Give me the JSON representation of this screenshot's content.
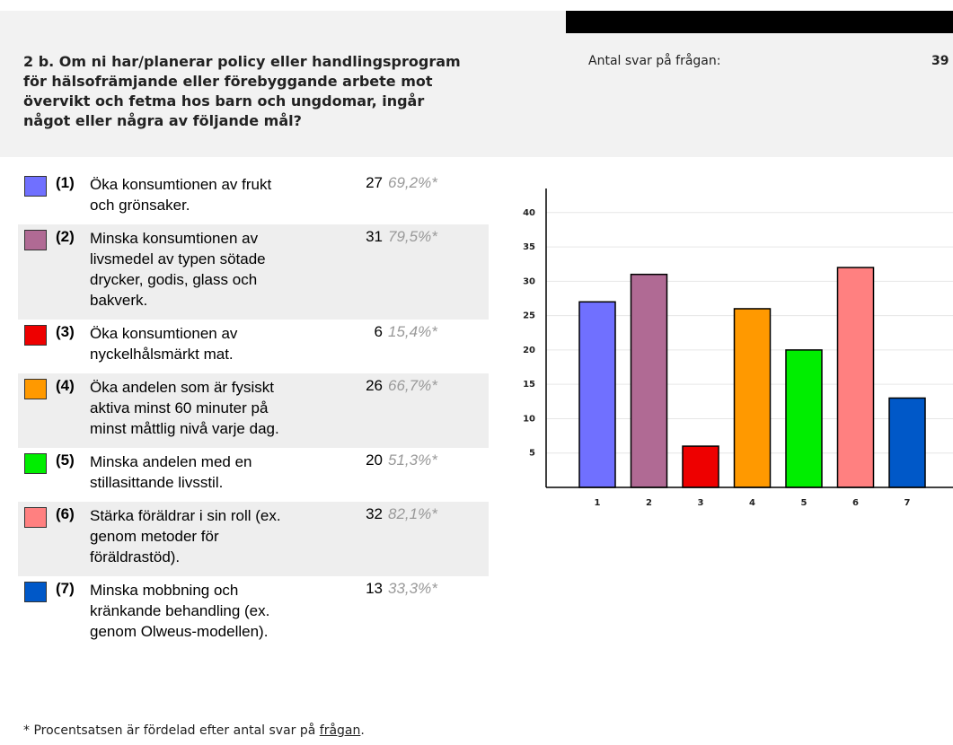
{
  "header": {
    "title_lines": [
      "2 b. Om ni har/planerar policy eller handlingsprogram",
      "för hälsofrämjande eller förebyggande arbete mot",
      "övervikt och fetma hos barn och ungdomar, ingår",
      "något eller några av följande mål?"
    ],
    "answers_label": "Antal svar på frågan:",
    "answers_count": "39"
  },
  "items": [
    {
      "code": "(1)",
      "lines": [
        "Öka konsumtionen av frukt",
        "och grönsaker."
      ],
      "count": "27",
      "percent": "69,2%*"
    },
    {
      "code": "(2)",
      "lines": [
        "Minska konsumtionen av",
        "livsmedel av typen sötade",
        "drycker, godis, glass och",
        "bakverk."
      ],
      "count": "31",
      "percent": "79,5%*"
    },
    {
      "code": "(3)",
      "lines": [
        "Öka konsumtionen av",
        "nyckelhålsmärkt mat."
      ],
      "count": "6",
      "percent": "15,4%*"
    },
    {
      "code": "(4)",
      "lines": [
        "Öka andelen som är fysiskt",
        "aktiva minst 60 minuter på",
        "minst måttlig nivå varje dag."
      ],
      "count": "26",
      "percent": "66,7%*"
    },
    {
      "code": "(5)",
      "lines": [
        "Minska andelen med en",
        "stillasittande livsstil."
      ],
      "count": "20",
      "percent": "51,3%*"
    },
    {
      "code": "(6)",
      "lines": [
        "Stärka föräldrar i sin roll (ex.",
        "genom metoder för",
        "föräldrastöd)."
      ],
      "count": "32",
      "percent": "82,1%*"
    },
    {
      "code": "(7)",
      "lines": [
        "Minska mobbning och",
        "kränkande behandling (ex.",
        "genom Olweus-modellen)."
      ],
      "count": "13",
      "percent": "33,3%*"
    }
  ],
  "chart_data": {
    "type": "bar",
    "categories": [
      "1",
      "2",
      "3",
      "4",
      "5",
      "6",
      "7"
    ],
    "values": [
      27,
      31,
      6,
      26,
      20,
      32,
      13
    ],
    "colors": [
      "#7070ff",
      "#b06a94",
      "#ee0000",
      "#ff9900",
      "#00ee00",
      "#ff8080",
      "#0058c8"
    ],
    "ylim": [
      0,
      43.5
    ],
    "yticks": [
      5,
      10,
      15,
      20,
      25,
      30,
      35,
      40
    ],
    "grid": true
  },
  "footnote": {
    "text": "* Procentsatsen är fördelad efter antal svar på ",
    "link": "frågan",
    "end": "."
  }
}
